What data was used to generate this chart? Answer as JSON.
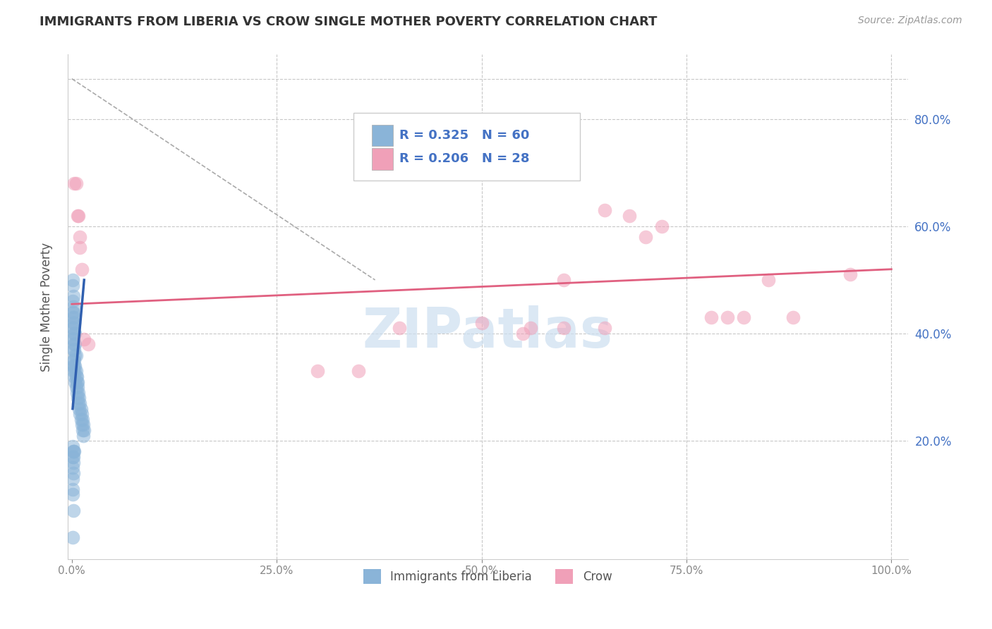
{
  "title": "IMMIGRANTS FROM LIBERIA VS CROW SINGLE MOTHER POVERTY CORRELATION CHART",
  "source": "Source: ZipAtlas.com",
  "ylabel": "Single Mother Poverty",
  "legend_label1": "Immigrants from Liberia",
  "legend_label2": "Crow",
  "R1": 0.325,
  "N1": 60,
  "R2": 0.206,
  "N2": 28,
  "watermark": "ZIPatlas",
  "xlim": [
    -0.005,
    1.02
  ],
  "ylim": [
    -0.02,
    0.92
  ],
  "blue_color": "#8ab4d8",
  "pink_color": "#f0a0b8",
  "blue_line_color": "#3060b0",
  "pink_line_color": "#e06080",
  "grid_color": "#c8c8c8",
  "blue_points": [
    [
      0.001,
      0.5
    ],
    [
      0.001,
      0.49
    ],
    [
      0.002,
      0.47
    ],
    [
      0.001,
      0.46
    ],
    [
      0.002,
      0.45
    ],
    [
      0.001,
      0.44
    ],
    [
      0.002,
      0.44
    ],
    [
      0.003,
      0.43
    ],
    [
      0.001,
      0.43
    ],
    [
      0.002,
      0.42
    ],
    [
      0.003,
      0.42
    ],
    [
      0.001,
      0.41
    ],
    [
      0.002,
      0.41
    ],
    [
      0.003,
      0.4
    ],
    [
      0.004,
      0.4
    ],
    [
      0.001,
      0.39
    ],
    [
      0.002,
      0.39
    ],
    [
      0.003,
      0.38
    ],
    [
      0.004,
      0.38
    ],
    [
      0.002,
      0.37
    ],
    [
      0.003,
      0.37
    ],
    [
      0.004,
      0.36
    ],
    [
      0.005,
      0.36
    ],
    [
      0.002,
      0.35
    ],
    [
      0.003,
      0.35
    ],
    [
      0.001,
      0.34
    ],
    [
      0.003,
      0.34
    ],
    [
      0.004,
      0.34
    ],
    [
      0.002,
      0.33
    ],
    [
      0.004,
      0.33
    ],
    [
      0.005,
      0.33
    ],
    [
      0.003,
      0.32
    ],
    [
      0.005,
      0.32
    ],
    [
      0.006,
      0.32
    ],
    [
      0.004,
      0.31
    ],
    [
      0.006,
      0.31
    ],
    [
      0.007,
      0.31
    ],
    [
      0.005,
      0.3
    ],
    [
      0.007,
      0.3
    ],
    [
      0.006,
      0.29
    ],
    [
      0.008,
      0.29
    ],
    [
      0.007,
      0.28
    ],
    [
      0.009,
      0.28
    ],
    [
      0.008,
      0.27
    ],
    [
      0.01,
      0.27
    ],
    [
      0.009,
      0.26
    ],
    [
      0.011,
      0.26
    ],
    [
      0.01,
      0.25
    ],
    [
      0.012,
      0.25
    ],
    [
      0.011,
      0.24
    ],
    [
      0.013,
      0.24
    ],
    [
      0.012,
      0.23
    ],
    [
      0.014,
      0.23
    ],
    [
      0.013,
      0.22
    ],
    [
      0.015,
      0.22
    ],
    [
      0.014,
      0.21
    ],
    [
      0.001,
      0.19
    ],
    [
      0.002,
      0.18
    ],
    [
      0.001,
      0.17
    ],
    [
      0.002,
      0.16
    ]
  ],
  "blue_points_below": [
    [
      0.001,
      0.13
    ],
    [
      0.001,
      0.11
    ],
    [
      0.002,
      0.18
    ],
    [
      0.002,
      0.17
    ],
    [
      0.003,
      0.18
    ],
    [
      0.001,
      0.15
    ],
    [
      0.002,
      0.14
    ],
    [
      0.001,
      0.1
    ],
    [
      0.002,
      0.07
    ],
    [
      0.001,
      0.02
    ]
  ],
  "pink_points": [
    [
      0.003,
      0.68
    ],
    [
      0.005,
      0.68
    ],
    [
      0.007,
      0.62
    ],
    [
      0.008,
      0.62
    ],
    [
      0.01,
      0.58
    ],
    [
      0.01,
      0.56
    ],
    [
      0.012,
      0.52
    ],
    [
      0.015,
      0.39
    ],
    [
      0.02,
      0.38
    ],
    [
      0.3,
      0.33
    ],
    [
      0.35,
      0.33
    ],
    [
      0.5,
      0.42
    ],
    [
      0.55,
      0.4
    ],
    [
      0.6,
      0.5
    ],
    [
      0.65,
      0.63
    ],
    [
      0.68,
      0.62
    ],
    [
      0.7,
      0.58
    ],
    [
      0.72,
      0.6
    ],
    [
      0.78,
      0.43
    ],
    [
      0.8,
      0.43
    ],
    [
      0.82,
      0.43
    ],
    [
      0.85,
      0.5
    ],
    [
      0.88,
      0.43
    ],
    [
      0.95,
      0.51
    ],
    [
      0.6,
      0.41
    ],
    [
      0.65,
      0.41
    ],
    [
      0.56,
      0.41
    ],
    [
      0.4,
      0.41
    ]
  ],
  "ytick_values": [
    0.2,
    0.4,
    0.6,
    0.8
  ],
  "ytick_labels": [
    "20.0%",
    "40.0%",
    "60.0%",
    "80.0%"
  ],
  "xtick_values": [
    0.0,
    0.25,
    0.5,
    0.75,
    1.0
  ],
  "xtick_labels": [
    "0.0%",
    "25.0%",
    "50.0%",
    "75.0%",
    "100.0%"
  ],
  "blue_line": [
    [
      0.001,
      0.26
    ],
    [
      0.015,
      0.5
    ]
  ],
  "pink_line": [
    [
      0.0,
      0.455
    ],
    [
      1.0,
      0.52
    ]
  ],
  "dash_line": [
    [
      0.0,
      0.875
    ],
    [
      0.37,
      0.5
    ]
  ]
}
